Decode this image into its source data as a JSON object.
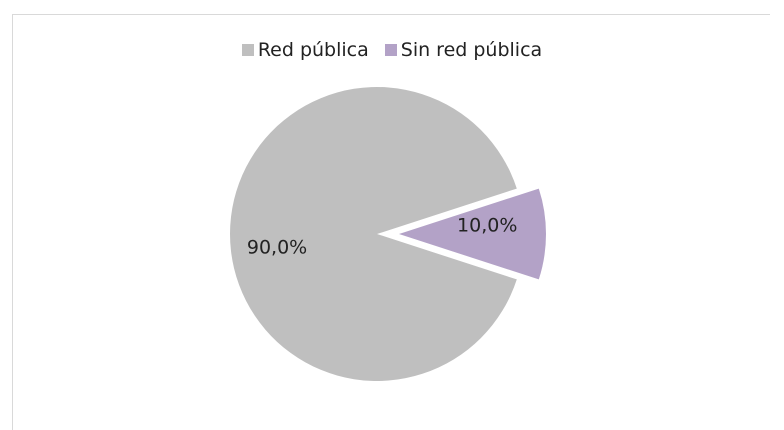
{
  "chart_data": {
    "type": "pie",
    "title": "",
    "legend_position": "top",
    "slices": [
      {
        "name": "Red pública",
        "value": 90.0,
        "label": "90,0%",
        "color": "#bfbfbf",
        "exploded": false
      },
      {
        "name": "Sin red pública",
        "value": 10.0,
        "label": "10,0%",
        "color": "#b3a2c7",
        "exploded": true
      }
    ]
  }
}
